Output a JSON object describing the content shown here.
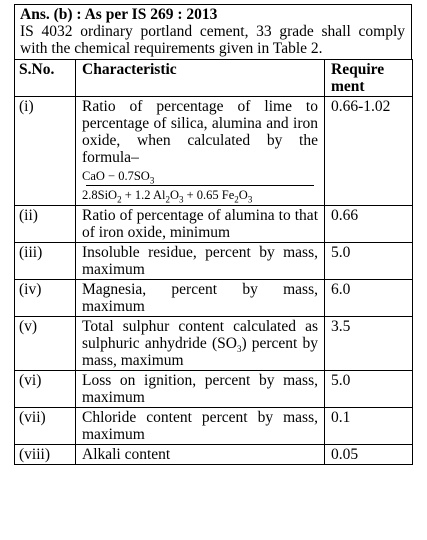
{
  "header": {
    "answer_label": "Ans. (b) : As per IS 269 : 2013",
    "intro_text": "IS 4032 ordinary portland cement, 33 grade shall comply with the chemical requirements given in Table 2."
  },
  "table": {
    "columns": [
      "S.No.",
      "Characteristic",
      "Require ment"
    ],
    "rows": [
      {
        "sno": "(i)",
        "characteristic": "Ratio of percentage of lime to percentage of silica, alumina and iron oxide, when calculated by the formula–",
        "requirement": "0.66-1.02"
      },
      {
        "sno": "(ii)",
        "characteristic": "Ratio of percentage of alumina to that of iron oxide, minimum",
        "requirement": "0.66"
      },
      {
        "sno": "(iii)",
        "characteristic": "Insoluble residue, percent by mass, maximum",
        "requirement": "5.0"
      },
      {
        "sno": "(iv)",
        "characteristic": "Magnesia, percent by mass, maximum",
        "requirement": "6.0"
      },
      {
        "sno": "(v)",
        "characteristic_before": "Total sulphur content calculated as sulphuric anhydride (SO",
        "characteristic_sub": "3",
        "characteristic_after": ") percent by mass, maximum",
        "requirement": "3.5"
      },
      {
        "sno": "(vi)",
        "characteristic": "Loss on ignition, percent by mass, maximum",
        "requirement": "5.0"
      },
      {
        "sno": "(vii)",
        "characteristic": "Chloride content percent by mass, maximum",
        "requirement": "0.1"
      },
      {
        "sno": "(viii)",
        "characteristic": "Alkali content",
        "requirement": "0.05"
      }
    ]
  },
  "formula": {
    "num_cao": "CaO",
    "num_minus": " − 0.7SO",
    "num_sub": "3",
    "den_a": "2.8SiO",
    "den_a_sub": "2",
    "den_b": " + 1.2 Al",
    "den_b_sub1": "2",
    "den_b_mid": "O",
    "den_b_sub2": "3",
    "den_c": " + 0.65 Fe",
    "den_c_sub1": "2",
    "den_c_mid": "O",
    "den_c_sub2": "3"
  }
}
